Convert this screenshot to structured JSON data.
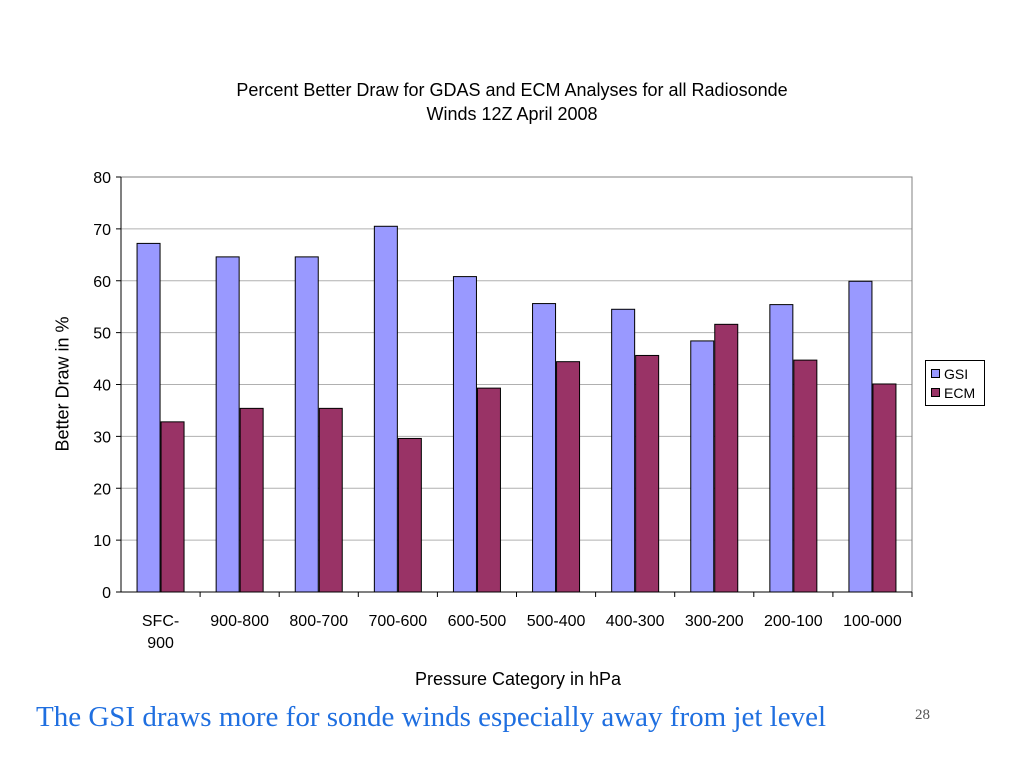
{
  "chart_data": {
    "type": "bar",
    "title": "Percent Better Draw for GDAS and ECM Analyses for all Radiosonde Winds 12Z April 2008",
    "title_lines": [
      "Percent Better Draw for GDAS and ECM Analyses for all Radiosonde",
      "Winds 12Z April 2008"
    ],
    "xlabel": "Pressure Category in hPa",
    "ylabel": "Better Draw in %",
    "categories": [
      "SFC-900",
      "900-800",
      "800-700",
      "700-600",
      "600-500",
      "500-400",
      "400-300",
      "300-200",
      "200-100",
      "100-000"
    ],
    "category_lines": [
      [
        "SFC-",
        "900"
      ],
      [
        "900-800"
      ],
      [
        "800-700"
      ],
      [
        "700-600"
      ],
      [
        "600-500"
      ],
      [
        "500-400"
      ],
      [
        "400-300"
      ],
      [
        "300-200"
      ],
      [
        "200-100"
      ],
      [
        "100-000"
      ]
    ],
    "series": [
      {
        "name": "GSI",
        "color": "#9999ff",
        "values": [
          67.2,
          64.6,
          64.6,
          70.5,
          60.8,
          55.6,
          54.5,
          48.4,
          55.4,
          59.9
        ]
      },
      {
        "name": "ECM",
        "color": "#993366",
        "values": [
          32.8,
          35.4,
          35.4,
          29.6,
          39.3,
          44.4,
          45.6,
          51.6,
          44.7,
          40.1
        ]
      }
    ],
    "ylim": [
      0,
      80
    ],
    "yticks": [
      0,
      10,
      20,
      30,
      40,
      50,
      60,
      70,
      80
    ],
    "grid": true,
    "legend_position": "right"
  },
  "caption": "The GSI draws more for sonde winds especially away from jet level",
  "slide_number": "28"
}
